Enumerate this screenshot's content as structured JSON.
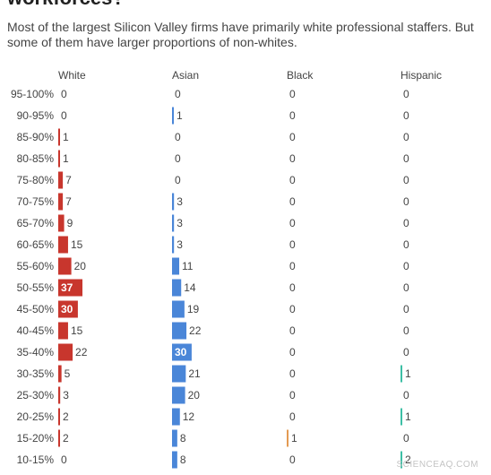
{
  "title": "workforces?",
  "subtitle": "Most of the largest Silicon Valley firms have primarily white professional staffers. But some of them have larger proportions of non-whites.",
  "watermark": "SCIENCEAQ.COM",
  "colors": {
    "White": "#c8362d",
    "Asian": "#4a86d8",
    "Black": "#e39a52",
    "Hispanic": "#3dbfa5"
  },
  "chart_data": {
    "type": "bar",
    "orientation": "horizontal small multiples",
    "categories": [
      "95-100%",
      "90-95%",
      "85-90%",
      "80-85%",
      "75-80%",
      "70-75%",
      "65-70%",
      "60-65%",
      "55-60%",
      "50-55%",
      "45-50%",
      "40-45%",
      "35-40%",
      "30-35%",
      "25-30%",
      "20-25%",
      "15-20%",
      "10-15%"
    ],
    "series": [
      {
        "name": "White",
        "values": [
          0,
          0,
          1,
          1,
          7,
          7,
          9,
          15,
          20,
          37,
          30,
          15,
          22,
          5,
          3,
          2,
          2,
          0
        ]
      },
      {
        "name": "Asian",
        "values": [
          0,
          1,
          0,
          0,
          0,
          3,
          3,
          3,
          11,
          14,
          19,
          22,
          30,
          21,
          20,
          12,
          8,
          8
        ]
      },
      {
        "name": "Black",
        "values": [
          0,
          0,
          0,
          0,
          0,
          0,
          0,
          0,
          0,
          0,
          0,
          0,
          0,
          0,
          0,
          0,
          1,
          0
        ]
      },
      {
        "name": "Hispanic",
        "values": [
          0,
          0,
          0,
          0,
          0,
          0,
          0,
          0,
          0,
          0,
          0,
          0,
          0,
          1,
          0,
          1,
          0,
          2
        ]
      }
    ],
    "highlighted": {
      "White": [
        37,
        30
      ],
      "Asian": [
        30
      ]
    },
    "xlim": [
      0,
      37
    ]
  }
}
